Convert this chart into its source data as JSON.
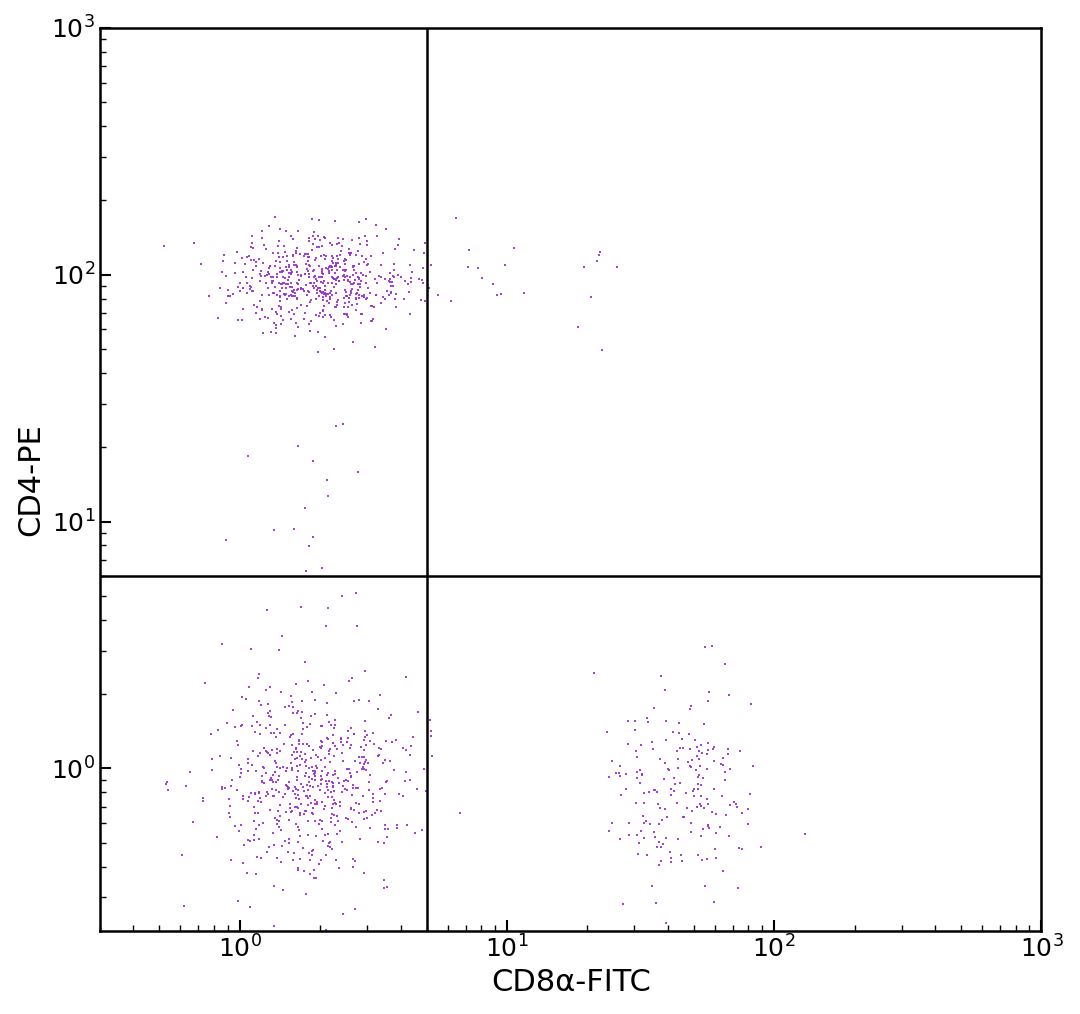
{
  "dot_color": "#9B30D0",
  "dot_size": 2.0,
  "dot_alpha": 0.9,
  "xlabel": "CD8α-FITC",
  "ylabel": "CD4-PE",
  "xlim_log": [
    0.3,
    1000
  ],
  "ylim_log": [
    0.22,
    1000
  ],
  "xgate": 5.0,
  "ygate": 6.0,
  "background_color": "#ffffff",
  "axis_color": "#000000",
  "tick_label_fontsize": 18,
  "axis_label_fontsize": 22,
  "clusters": {
    "Q2_CD4pos_CD8neg": {
      "n": 550,
      "x_center_log": 0.3,
      "x_spread_log": 0.18,
      "y_center_log": 1.97,
      "y_spread_log": 0.1
    },
    "Q3_CD4neg_CD8neg": {
      "n": 580,
      "x_center_log": 0.25,
      "x_spread_log": 0.18,
      "y_center_log": -0.05,
      "y_spread_log": 0.2
    },
    "Q4_CD4neg_CD8pos": {
      "n": 200,
      "x_center_log": 1.65,
      "x_spread_log": 0.15,
      "y_center_log": -0.1,
      "y_spread_log": 0.2
    },
    "Q1_CD4pos_CD8pos_sparse": {
      "n": 18,
      "x_center_log": 1.2,
      "x_spread_log": 0.25,
      "y_center_log": 1.97,
      "y_spread_log": 0.18
    },
    "Q3_scatter_mid": {
      "n": 25,
      "x_center_log": 0.2,
      "x_spread_log": 0.12,
      "y_center_log": 0.8,
      "y_spread_log": 0.3
    }
  },
  "random_seed": 42
}
